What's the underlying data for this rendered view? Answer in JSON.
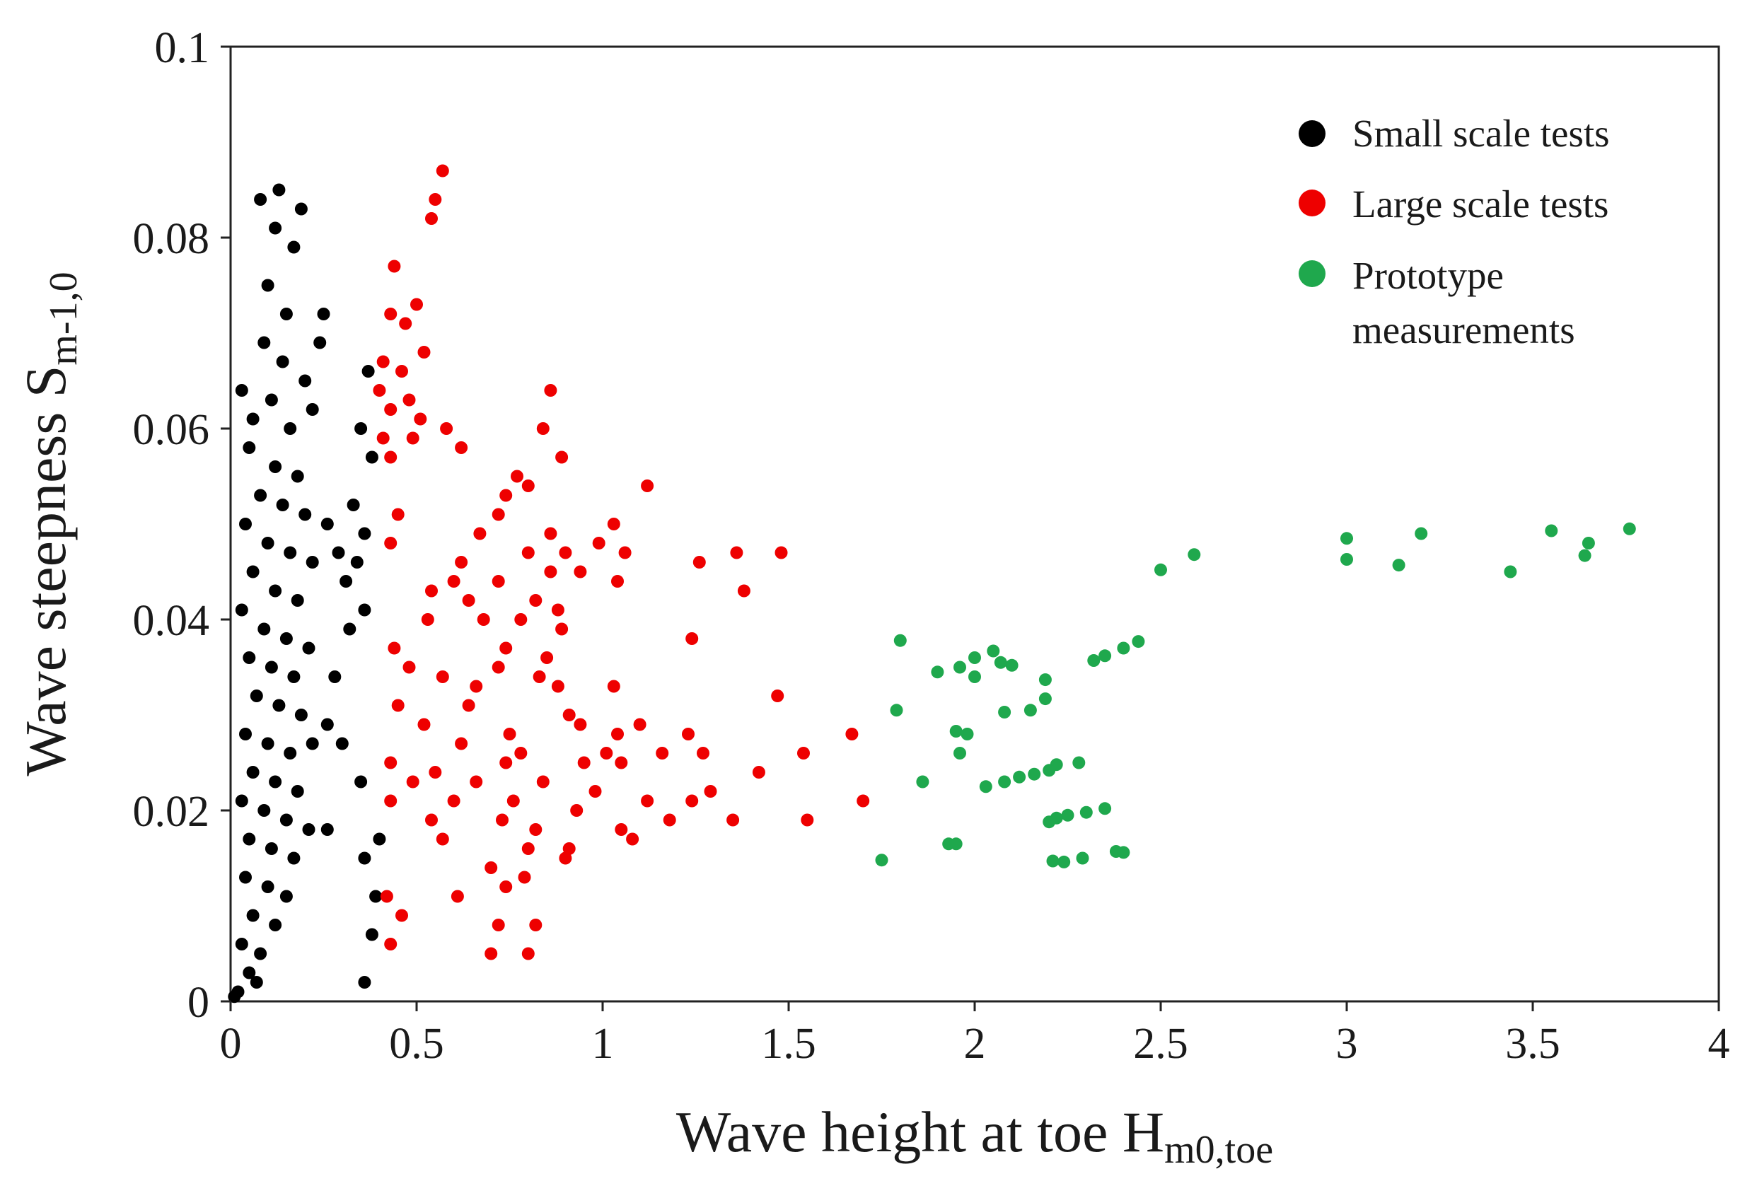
{
  "chart_data": {
    "type": "scatter",
    "xlabel": "Wave height at toe H",
    "xlabel_subscript": "m0,toe",
    "ylabel": "Wave steepness S",
    "ylabel_subscript": "m-1,0",
    "xlim": [
      0,
      4
    ],
    "ylim": [
      0,
      0.1
    ],
    "x_ticks": [
      {
        "value": 0,
        "label": "0"
      },
      {
        "value": 0.5,
        "label": "0.5"
      },
      {
        "value": 1,
        "label": "1"
      },
      {
        "value": 1.5,
        "label": "1.5"
      },
      {
        "value": 2,
        "label": "2"
      },
      {
        "value": 2.5,
        "label": "2.5"
      },
      {
        "value": 3,
        "label": "3"
      },
      {
        "value": 3.5,
        "label": "3.5"
      },
      {
        "value": 4,
        "label": "4"
      }
    ],
    "y_ticks": [
      {
        "value": 0,
        "label": "0"
      },
      {
        "value": 0.02,
        "label": "0.02"
      },
      {
        "value": 0.04,
        "label": "0.04"
      },
      {
        "value": 0.06,
        "label": "0.06"
      },
      {
        "value": 0.08,
        "label": "0.08"
      },
      {
        "value": 0.1,
        "label": "0.1"
      }
    ],
    "grid": false,
    "legend_position": "top-right",
    "series": [
      {
        "name": "Small scale tests",
        "color": "#000000",
        "points": [
          [
            0.08,
            0.084
          ],
          [
            0.13,
            0.085
          ],
          [
            0.19,
            0.083
          ],
          [
            0.12,
            0.081
          ],
          [
            0.17,
            0.079
          ],
          [
            0.1,
            0.075
          ],
          [
            0.15,
            0.072
          ],
          [
            0.25,
            0.072
          ],
          [
            0.24,
            0.069
          ],
          [
            0.09,
            0.069
          ],
          [
            0.14,
            0.067
          ],
          [
            0.03,
            0.064
          ],
          [
            0.2,
            0.065
          ],
          [
            0.37,
            0.066
          ],
          [
            0.11,
            0.063
          ],
          [
            0.06,
            0.061
          ],
          [
            0.16,
            0.06
          ],
          [
            0.22,
            0.062
          ],
          [
            0.35,
            0.06
          ],
          [
            0.38,
            0.057
          ],
          [
            0.05,
            0.058
          ],
          [
            0.12,
            0.056
          ],
          [
            0.18,
            0.055
          ],
          [
            0.08,
            0.053
          ],
          [
            0.14,
            0.052
          ],
          [
            0.2,
            0.051
          ],
          [
            0.26,
            0.05
          ],
          [
            0.33,
            0.052
          ],
          [
            0.36,
            0.049
          ],
          [
            0.04,
            0.05
          ],
          [
            0.1,
            0.048
          ],
          [
            0.16,
            0.047
          ],
          [
            0.22,
            0.046
          ],
          [
            0.29,
            0.047
          ],
          [
            0.34,
            0.046
          ],
          [
            0.06,
            0.045
          ],
          [
            0.12,
            0.043
          ],
          [
            0.18,
            0.042
          ],
          [
            0.31,
            0.044
          ],
          [
            0.36,
            0.041
          ],
          [
            0.03,
            0.041
          ],
          [
            0.09,
            0.039
          ],
          [
            0.15,
            0.038
          ],
          [
            0.21,
            0.037
          ],
          [
            0.32,
            0.039
          ],
          [
            0.05,
            0.036
          ],
          [
            0.11,
            0.035
          ],
          [
            0.17,
            0.034
          ],
          [
            0.28,
            0.034
          ],
          [
            0.07,
            0.032
          ],
          [
            0.13,
            0.031
          ],
          [
            0.19,
            0.03
          ],
          [
            0.26,
            0.029
          ],
          [
            0.04,
            0.028
          ],
          [
            0.1,
            0.027
          ],
          [
            0.16,
            0.026
          ],
          [
            0.22,
            0.027
          ],
          [
            0.3,
            0.027
          ],
          [
            0.06,
            0.024
          ],
          [
            0.12,
            0.023
          ],
          [
            0.18,
            0.022
          ],
          [
            0.35,
            0.023
          ],
          [
            0.03,
            0.021
          ],
          [
            0.09,
            0.02
          ],
          [
            0.15,
            0.019
          ],
          [
            0.21,
            0.018
          ],
          [
            0.26,
            0.018
          ],
          [
            0.36,
            0.015
          ],
          [
            0.4,
            0.017
          ],
          [
            0.05,
            0.017
          ],
          [
            0.11,
            0.016
          ],
          [
            0.17,
            0.015
          ],
          [
            0.04,
            0.013
          ],
          [
            0.1,
            0.012
          ],
          [
            0.15,
            0.011
          ],
          [
            0.39,
            0.011
          ],
          [
            0.06,
            0.009
          ],
          [
            0.12,
            0.008
          ],
          [
            0.38,
            0.007
          ],
          [
            0.03,
            0.006
          ],
          [
            0.08,
            0.005
          ],
          [
            0.36,
            0.002
          ],
          [
            0.05,
            0.003
          ],
          [
            0.02,
            0.001
          ],
          [
            0.01,
            0.0005
          ],
          [
            0.07,
            0.002
          ]
        ]
      },
      {
        "name": "Large scale tests",
        "color": "#ee0000",
        "points": [
          [
            0.57,
            0.087
          ],
          [
            0.55,
            0.084
          ],
          [
            0.54,
            0.082
          ],
          [
            0.44,
            0.077
          ],
          [
            0.5,
            0.073
          ],
          [
            0.43,
            0.072
          ],
          [
            0.47,
            0.071
          ],
          [
            0.52,
            0.068
          ],
          [
            0.41,
            0.067
          ],
          [
            0.46,
            0.066
          ],
          [
            0.4,
            0.064
          ],
          [
            0.48,
            0.063
          ],
          [
            0.43,
            0.062
          ],
          [
            0.51,
            0.061
          ],
          [
            0.58,
            0.06
          ],
          [
            0.41,
            0.059
          ],
          [
            0.62,
            0.058
          ],
          [
            0.49,
            0.059
          ],
          [
            0.86,
            0.064
          ],
          [
            0.84,
            0.06
          ],
          [
            0.43,
            0.057
          ],
          [
            0.89,
            0.057
          ],
          [
            0.77,
            0.055
          ],
          [
            0.8,
            0.054
          ],
          [
            0.74,
            0.053
          ],
          [
            0.72,
            0.051
          ],
          [
            0.45,
            0.051
          ],
          [
            1.12,
            0.054
          ],
          [
            0.43,
            0.048
          ],
          [
            0.67,
            0.049
          ],
          [
            0.86,
            0.049
          ],
          [
            1.03,
            0.05
          ],
          [
            0.62,
            0.046
          ],
          [
            0.8,
            0.047
          ],
          [
            0.9,
            0.047
          ],
          [
            0.99,
            0.048
          ],
          [
            1.06,
            0.047
          ],
          [
            1.26,
            0.046
          ],
          [
            1.36,
            0.047
          ],
          [
            1.48,
            0.047
          ],
          [
            0.6,
            0.044
          ],
          [
            0.72,
            0.044
          ],
          [
            0.86,
            0.045
          ],
          [
            0.94,
            0.045
          ],
          [
            1.04,
            0.044
          ],
          [
            1.38,
            0.043
          ],
          [
            0.54,
            0.043
          ],
          [
            0.64,
            0.042
          ],
          [
            0.82,
            0.042
          ],
          [
            0.88,
            0.041
          ],
          [
            0.53,
            0.04
          ],
          [
            0.68,
            0.04
          ],
          [
            0.78,
            0.04
          ],
          [
            0.89,
            0.039
          ],
          [
            1.24,
            0.038
          ],
          [
            0.44,
            0.037
          ],
          [
            0.74,
            0.037
          ],
          [
            0.85,
            0.036
          ],
          [
            0.48,
            0.035
          ],
          [
            0.72,
            0.035
          ],
          [
            0.83,
            0.034
          ],
          [
            0.57,
            0.034
          ],
          [
            0.66,
            0.033
          ],
          [
            0.88,
            0.033
          ],
          [
            1.03,
            0.033
          ],
          [
            0.45,
            0.031
          ],
          [
            0.64,
            0.031
          ],
          [
            0.91,
            0.03
          ],
          [
            1.47,
            0.032
          ],
          [
            0.52,
            0.029
          ],
          [
            0.75,
            0.028
          ],
          [
            0.94,
            0.029
          ],
          [
            1.04,
            0.028
          ],
          [
            1.1,
            0.029
          ],
          [
            1.23,
            0.028
          ],
          [
            0.62,
            0.027
          ],
          [
            0.78,
            0.026
          ],
          [
            1.01,
            0.026
          ],
          [
            1.16,
            0.026
          ],
          [
            1.27,
            0.026
          ],
          [
            1.54,
            0.026
          ],
          [
            1.67,
            0.028
          ],
          [
            0.43,
            0.025
          ],
          [
            0.55,
            0.024
          ],
          [
            0.74,
            0.025
          ],
          [
            0.95,
            0.025
          ],
          [
            1.05,
            0.025
          ],
          [
            0.49,
            0.023
          ],
          [
            0.66,
            0.023
          ],
          [
            0.84,
            0.023
          ],
          [
            0.98,
            0.022
          ],
          [
            1.29,
            0.022
          ],
          [
            1.42,
            0.024
          ],
          [
            0.43,
            0.021
          ],
          [
            0.6,
            0.021
          ],
          [
            0.76,
            0.021
          ],
          [
            0.93,
            0.02
          ],
          [
            1.12,
            0.021
          ],
          [
            1.24,
            0.021
          ],
          [
            1.7,
            0.021
          ],
          [
            0.54,
            0.019
          ],
          [
            0.73,
            0.019
          ],
          [
            0.82,
            0.018
          ],
          [
            1.05,
            0.018
          ],
          [
            1.18,
            0.019
          ],
          [
            1.35,
            0.019
          ],
          [
            1.55,
            0.019
          ],
          [
            0.57,
            0.017
          ],
          [
            0.8,
            0.016
          ],
          [
            0.91,
            0.016
          ],
          [
            1.08,
            0.017
          ],
          [
            0.7,
            0.014
          ],
          [
            0.79,
            0.013
          ],
          [
            0.9,
            0.015
          ],
          [
            0.74,
            0.012
          ],
          [
            0.61,
            0.011
          ],
          [
            0.42,
            0.011
          ],
          [
            0.46,
            0.009
          ],
          [
            0.72,
            0.008
          ],
          [
            0.82,
            0.008
          ],
          [
            0.43,
            0.006
          ],
          [
            0.7,
            0.005
          ],
          [
            0.8,
            0.005
          ]
        ]
      },
      {
        "name": "Prototype measurements",
        "label_lines": [
          "Prototype",
          "measurements"
        ],
        "color": "#1fa84d",
        "points": [
          [
            3.76,
            0.0495
          ],
          [
            3.55,
            0.0493
          ],
          [
            3.2,
            0.049
          ],
          [
            3.0,
            0.0485
          ],
          [
            3.65,
            0.048
          ],
          [
            3.64,
            0.0467
          ],
          [
            3.0,
            0.0463
          ],
          [
            3.14,
            0.0457
          ],
          [
            3.44,
            0.045
          ],
          [
            2.59,
            0.0468
          ],
          [
            2.5,
            0.0452
          ],
          [
            2.44,
            0.0377
          ],
          [
            2.4,
            0.037
          ],
          [
            2.35,
            0.0362
          ],
          [
            2.32,
            0.0357
          ],
          [
            1.8,
            0.0378
          ],
          [
            2.05,
            0.0367
          ],
          [
            2.0,
            0.036
          ],
          [
            1.96,
            0.035
          ],
          [
            2.07,
            0.0355
          ],
          [
            2.1,
            0.0352
          ],
          [
            1.9,
            0.0345
          ],
          [
            2.0,
            0.034
          ],
          [
            2.19,
            0.0337
          ],
          [
            1.79,
            0.0305
          ],
          [
            2.08,
            0.0303
          ],
          [
            2.15,
            0.0305
          ],
          [
            2.19,
            0.0317
          ],
          [
            1.98,
            0.028
          ],
          [
            1.95,
            0.0283
          ],
          [
            1.96,
            0.026
          ],
          [
            2.28,
            0.025
          ],
          [
            2.22,
            0.0248
          ],
          [
            2.2,
            0.0242
          ],
          [
            2.16,
            0.0238
          ],
          [
            2.12,
            0.0235
          ],
          [
            2.08,
            0.023
          ],
          [
            1.86,
            0.023
          ],
          [
            2.03,
            0.0225
          ],
          [
            2.35,
            0.0202
          ],
          [
            2.3,
            0.0198
          ],
          [
            2.25,
            0.0195
          ],
          [
            2.22,
            0.0192
          ],
          [
            2.2,
            0.0188
          ],
          [
            1.93,
            0.0165
          ],
          [
            1.95,
            0.0165
          ],
          [
            2.38,
            0.0157
          ],
          [
            2.4,
            0.0156
          ],
          [
            2.29,
            0.015
          ],
          [
            1.75,
            0.0148
          ],
          [
            2.21,
            0.0147
          ],
          [
            2.24,
            0.0146
          ]
        ]
      }
    ]
  }
}
